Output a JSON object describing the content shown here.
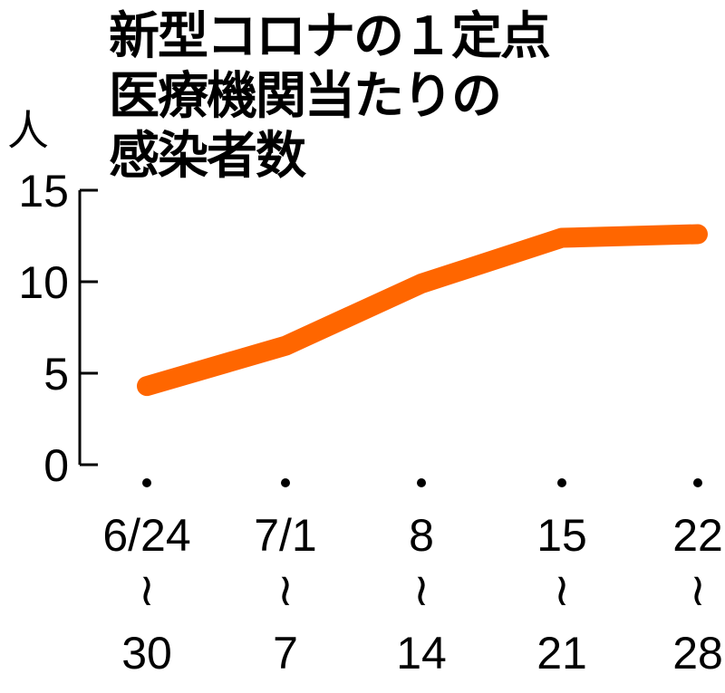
{
  "chart_data": {
    "type": "line",
    "title_lines": [
      "新型コロナの１定点",
      "医療機関当たりの",
      "感染者数"
    ],
    "ylabel": "人",
    "ylim": [
      0,
      15
    ],
    "yticks": [
      "0",
      "5",
      "10",
      "15"
    ],
    "categories": [
      {
        "from": "6/24",
        "sep": "≀",
        "to": "30"
      },
      {
        "from": "7/1",
        "sep": "≀",
        "to": "7"
      },
      {
        "from": "8",
        "sep": "≀",
        "to": "14"
      },
      {
        "from": "15",
        "sep": "≀",
        "to": "21"
      },
      {
        "from": "22",
        "sep": "≀",
        "to": "28"
      }
    ],
    "values": [
      4.3,
      6.5,
      9.9,
      12.4,
      12.6
    ],
    "line_color": "#ff6600",
    "grid": false
  }
}
